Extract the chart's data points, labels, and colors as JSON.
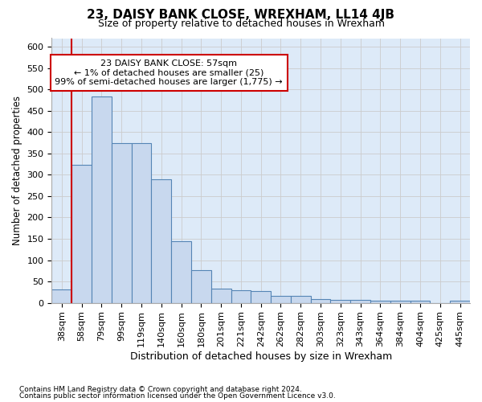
{
  "title": "23, DAISY BANK CLOSE, WREXHAM, LL14 4JB",
  "subtitle": "Size of property relative to detached houses in Wrexham",
  "xlabel": "Distribution of detached houses by size in Wrexham",
  "ylabel": "Number of detached properties",
  "footnote1": "Contains HM Land Registry data © Crown copyright and database right 2024.",
  "footnote2": "Contains public sector information licensed under the Open Government Licence v3.0.",
  "annotation_line1": "23 DAISY BANK CLOSE: 57sqm",
  "annotation_line2": "← 1% of detached houses are smaller (25)",
  "annotation_line3": "99% of semi-detached houses are larger (1,775) →",
  "bar_color": "#c8d8ee",
  "bar_edge_color": "#5585b5",
  "red_line_color": "#cc0000",
  "categories": [
    "38sqm",
    "58sqm",
    "79sqm",
    "99sqm",
    "119sqm",
    "140sqm",
    "160sqm",
    "180sqm",
    "201sqm",
    "221sqm",
    "242sqm",
    "262sqm",
    "282sqm",
    "303sqm",
    "323sqm",
    "343sqm",
    "364sqm",
    "384sqm",
    "404sqm",
    "425sqm",
    "445sqm"
  ],
  "values": [
    32,
    323,
    483,
    375,
    375,
    290,
    145,
    77,
    33,
    30,
    28,
    16,
    16,
    8,
    6,
    6,
    5,
    5,
    5,
    0,
    5
  ],
  "red_line_x": 1,
  "ylim": [
    0,
    620
  ],
  "yticks": [
    0,
    50,
    100,
    150,
    200,
    250,
    300,
    350,
    400,
    450,
    500,
    550,
    600
  ],
  "grid_color": "#cccccc",
  "bg_color": "#ddeaf8",
  "title_fontsize": 11,
  "subtitle_fontsize": 9,
  "tick_fontsize": 8,
  "ylabel_fontsize": 8.5,
  "xlabel_fontsize": 9,
  "footnote_fontsize": 6.5,
  "annot_fontsize": 8
}
